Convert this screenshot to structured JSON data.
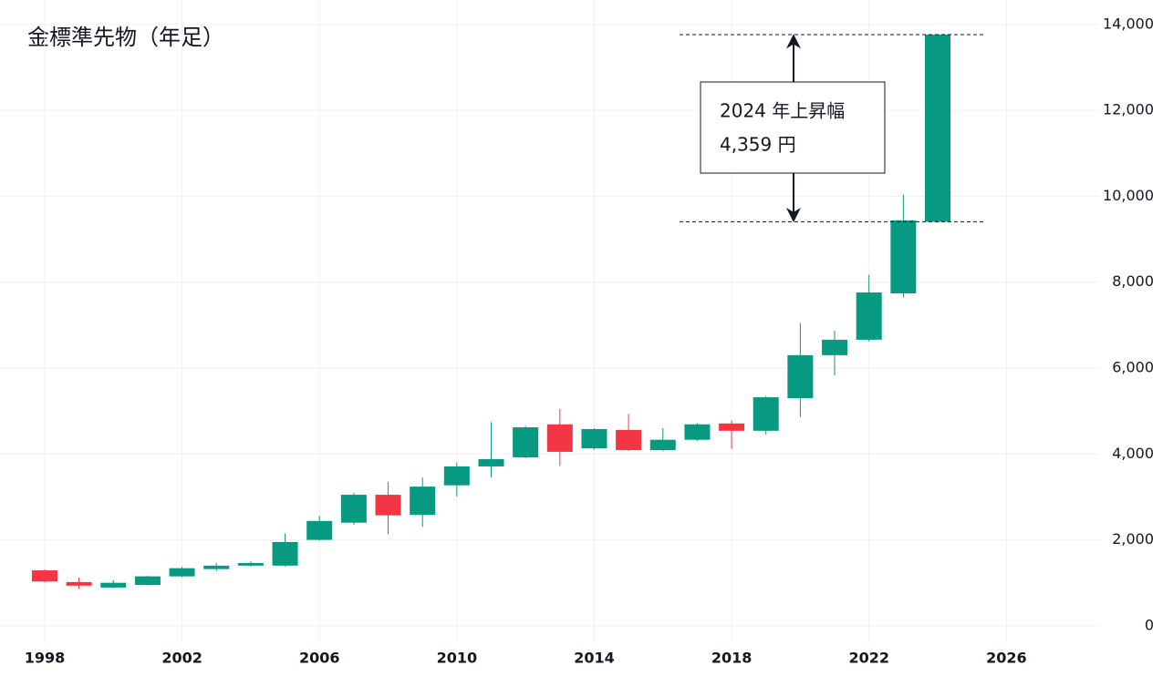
{
  "chart_data": {
    "type": "candlestick",
    "title": "金標準先物（年足）",
    "x": [
      1998,
      1999,
      2000,
      2001,
      2002,
      2003,
      2004,
      2005,
      2006,
      2007,
      2008,
      2009,
      2010,
      2011,
      2012,
      2013,
      2014,
      2015,
      2016,
      2017,
      2018,
      2019,
      2020,
      2021,
      2022,
      2023,
      2024
    ],
    "open": [
      1290,
      1018,
      890,
      950,
      1150,
      1320,
      1400,
      1400,
      2000,
      2400,
      3050,
      2580,
      3270,
      3710,
      3920,
      4690,
      4130,
      4560,
      4090,
      4330,
      4710,
      4540,
      5300,
      6300,
      6660,
      7740,
      9406
    ],
    "high": [
      1310,
      1120,
      1060,
      1170,
      1370,
      1460,
      1500,
      2150,
      2560,
      3100,
      3350,
      3450,
      3800,
      4740,
      4650,
      5050,
      4600,
      4930,
      4600,
      4720,
      4780,
      5350,
      7050,
      6870,
      8170,
      10040,
      13780
    ],
    "low": [
      1010,
      850,
      870,
      940,
      1130,
      1270,
      1380,
      1380,
      1980,
      2350,
      2130,
      2300,
      3010,
      3460,
      3900,
      3720,
      4100,
      4070,
      4060,
      4300,
      4120,
      4450,
      4860,
      5830,
      6620,
      7640,
      9380
    ],
    "close": [
      1030,
      933,
      1000,
      1150,
      1340,
      1400,
      1460,
      1950,
      2440,
      3050,
      2570,
      3240,
      3710,
      3880,
      4620,
      4050,
      4580,
      4090,
      4330,
      4690,
      4540,
      5320,
      6300,
      6660,
      7760,
      9440,
      13765
    ],
    "up_color": "#089981",
    "down_color": "#f23645",
    "xlim": [
      1996.7,
      2028.7
    ],
    "xticks": [
      1998,
      2002,
      2006,
      2010,
      2014,
      2018,
      2022,
      2026
    ],
    "ylim": [
      -1170,
      14570
    ],
    "yticks": [
      0,
      {
        "value": 2000,
        "label": "2,000"
      },
      {
        "value": 4000,
        "label": "4,000"
      },
      {
        "value": 6000,
        "label": "6,000"
      },
      {
        "value": 8000,
        "label": "8,000"
      },
      {
        "value": 10000,
        "label": "10,000"
      },
      {
        "value": 12000,
        "label": "12,000"
      },
      {
        "value": 14000,
        "label": "14,000"
      }
    ],
    "grid": true,
    "annotation": [
      "2024 年上昇幅",
      "4,359 円"
    ]
  }
}
